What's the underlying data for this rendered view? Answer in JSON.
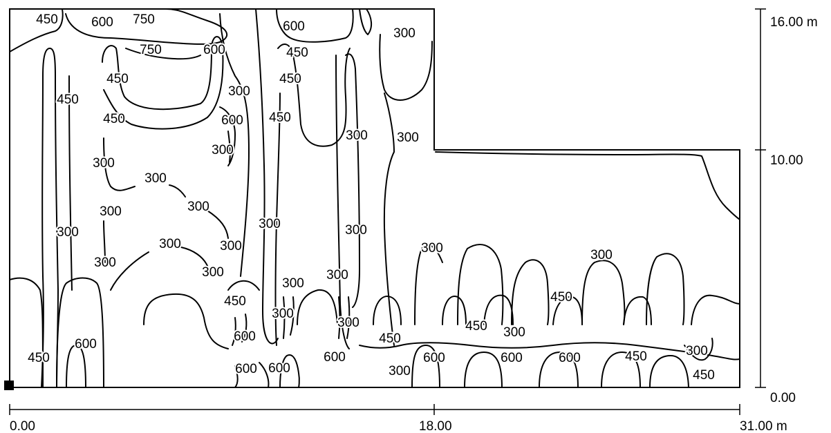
{
  "chart_data": {
    "type": "contour",
    "xlim": [
      0,
      31
    ],
    "ylim": [
      0,
      16
    ],
    "x_ticks": [
      "0.00",
      "18.00",
      "31.00 m"
    ],
    "y_ticks": [
      "0.00",
      "10.00",
      "16.00 m"
    ],
    "contour_levels": [
      300,
      450,
      600,
      750
    ],
    "room_outline": [
      [
        0,
        0
      ],
      [
        31,
        0
      ],
      [
        31,
        10
      ],
      [
        18,
        10
      ],
      [
        18,
        16
      ],
      [
        0,
        16
      ]
    ],
    "contour_labels": [
      "450",
      "600",
      "750",
      "750",
      "600",
      "600",
      "450",
      "300",
      "450",
      "450",
      "450",
      "450",
      "300",
      "600",
      "450",
      "300",
      "300",
      "300",
      "300",
      "300",
      "300",
      "300",
      "300",
      "300",
      "300",
      "300",
      "300",
      "300",
      "300",
      "300",
      "300",
      "300",
      "300",
      "300",
      "300",
      "300",
      "300",
      "450",
      "450",
      "450",
      "450",
      "300",
      "600",
      "600",
      "600",
      "600",
      "600",
      "600",
      "600",
      "600",
      "450",
      "450",
      "450"
    ]
  }
}
